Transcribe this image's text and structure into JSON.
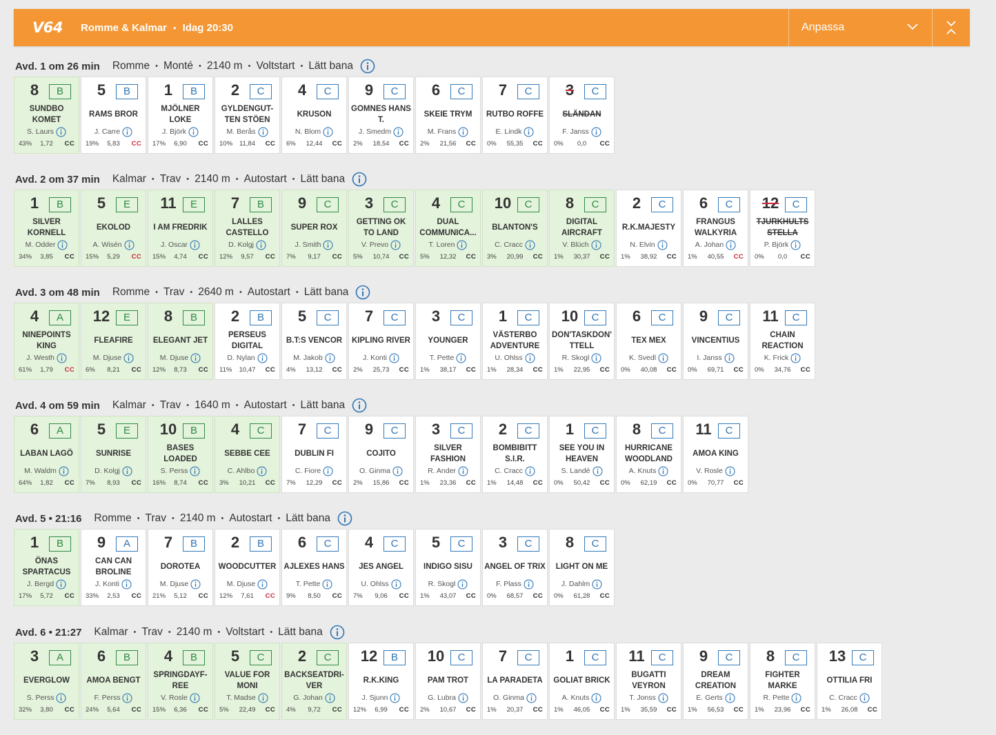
{
  "header": {
    "logo": "V64",
    "track": "Romme & Kalmar",
    "separator": "•",
    "time": "Idag 20:30",
    "customize_label": "Anpassa",
    "bg_color": "#f39633"
  },
  "races": [
    {
      "avd": "Avd. 1 om 26 min",
      "info": [
        "Romme",
        "Monté",
        "2140 m",
        "Voltstart",
        "Lätt bana"
      ],
      "horses": [
        {
          "num": "8",
          "grp": "B",
          "name": "SUNDBO KOMET",
          "driver": "S. Laurs",
          "pct": "43%",
          "odds": "1,72",
          "cc": "CC",
          "sel": true
        },
        {
          "num": "5",
          "grp": "B",
          "name": "RAMS BROR",
          "driver": "J. Carre",
          "pct": "19%",
          "odds": "5,83",
          "cc": "CC",
          "ccRed": true
        },
        {
          "num": "1",
          "grp": "B",
          "name": "MJÖLNER LOKE",
          "driver": "J. Björk",
          "pct": "17%",
          "odds": "6,90",
          "cc": "CC"
        },
        {
          "num": "2",
          "grp": "C",
          "name": "GYLDENGUT-TEN STÖEN",
          "driver": "M. Berås",
          "pct": "10%",
          "odds": "11,84",
          "cc": "CC"
        },
        {
          "num": "4",
          "grp": "C",
          "name": "KRUSON",
          "driver": "N. Blom",
          "pct": "6%",
          "odds": "12,44",
          "cc": "CC"
        },
        {
          "num": "9",
          "grp": "C",
          "name": "GOMNES HANS T.",
          "driver": "J. Smedm",
          "pct": "2%",
          "odds": "18,54",
          "cc": "CC"
        },
        {
          "num": "6",
          "grp": "C",
          "name": "SKEIE TRYM",
          "driver": "M. Frans",
          "pct": "2%",
          "odds": "21,56",
          "cc": "CC"
        },
        {
          "num": "7",
          "grp": "C",
          "name": "RUTBO ROFFE",
          "driver": "E. Lindk",
          "pct": "0%",
          "odds": "55,35",
          "cc": "CC"
        },
        {
          "num": "3",
          "grp": "C",
          "name": "SLÄNDAN",
          "driver": "F. Janss",
          "pct": "0%",
          "odds": "0,0",
          "cc": "CC",
          "scratched": true
        }
      ]
    },
    {
      "avd": "Avd. 2 om 37 min",
      "info": [
        "Kalmar",
        "Trav",
        "2140 m",
        "Autostart",
        "Lätt bana"
      ],
      "horses": [
        {
          "num": "1",
          "grp": "B",
          "name": "SILVER KORNELL",
          "driver": "M. Odder",
          "pct": "34%",
          "odds": "3,85",
          "cc": "CC",
          "sel": true
        },
        {
          "num": "5",
          "grp": "E",
          "name": "EKOLOD",
          "driver": "A. Wisén",
          "pct": "15%",
          "odds": "5,29",
          "cc": "CC",
          "sel": true,
          "ccRed": true
        },
        {
          "num": "11",
          "grp": "E",
          "name": "I AM FREDRIK",
          "driver": "J. Oscar",
          "pct": "15%",
          "odds": "4,74",
          "cc": "CC",
          "sel": true
        },
        {
          "num": "7",
          "grp": "B",
          "name": "LALLES CASTELLO",
          "driver": "D. Kolgj",
          "pct": "12%",
          "odds": "9,57",
          "cc": "CC",
          "sel": true
        },
        {
          "num": "9",
          "grp": "C",
          "name": "SUPER ROX",
          "driver": "J. Smith",
          "pct": "7%",
          "odds": "9,17",
          "cc": "CC",
          "sel": true
        },
        {
          "num": "3",
          "grp": "C",
          "name": "GETTING OK TO LAND",
          "driver": "V. Prevo",
          "pct": "5%",
          "odds": "10,74",
          "cc": "CC",
          "sel": true
        },
        {
          "num": "4",
          "grp": "C",
          "name": "DUAL COMMUNICA...",
          "driver": "T. Loren",
          "pct": "5%",
          "odds": "12,32",
          "cc": "CC",
          "sel": true
        },
        {
          "num": "10",
          "grp": "C",
          "name": "BLANTON'S",
          "driver": "C. Cracc",
          "pct": "3%",
          "odds": "20,99",
          "cc": "CC",
          "sel": true
        },
        {
          "num": "8",
          "grp": "C",
          "name": "DIGITAL AIRCRAFT",
          "driver": "V. Blüch",
          "pct": "1%",
          "odds": "30,37",
          "cc": "CC",
          "sel": true
        },
        {
          "num": "2",
          "grp": "C",
          "name": "R.K.MAJESTY",
          "driver": "N. Elvin",
          "pct": "1%",
          "odds": "38,92",
          "cc": "CC"
        },
        {
          "num": "6",
          "grp": "C",
          "name": "FRANGUS WALKYRIA",
          "driver": "A. Johan",
          "pct": "1%",
          "odds": "40,55",
          "cc": "CC",
          "ccRed": true
        },
        {
          "num": "12",
          "grp": "C",
          "name": "TJURKHULTS STELLA",
          "driver": "P. Björk",
          "pct": "0%",
          "odds": "0,0",
          "cc": "CC",
          "scratched": true
        }
      ]
    },
    {
      "avd": "Avd. 3 om 48 min",
      "info": [
        "Romme",
        "Trav",
        "2640 m",
        "Autostart",
        "Lätt bana"
      ],
      "horses": [
        {
          "num": "4",
          "grp": "A",
          "name": "NINEPOINTS KING",
          "driver": "J. Westh",
          "pct": "61%",
          "odds": "1,79",
          "cc": "CC",
          "sel": true,
          "ccRed": true
        },
        {
          "num": "12",
          "grp": "E",
          "name": "FLEAFIRE",
          "driver": "M. Djuse",
          "pct": "6%",
          "odds": "8,21",
          "cc": "CC",
          "sel": true
        },
        {
          "num": "8",
          "grp": "B",
          "name": "ELEGANT JET",
          "driver": "M. Djuse",
          "pct": "12%",
          "odds": "8,73",
          "cc": "CC",
          "sel": true
        },
        {
          "num": "2",
          "grp": "B",
          "name": "PERSEUS DIGITAL",
          "driver": "D. Nylan",
          "pct": "11%",
          "odds": "10,47",
          "cc": "CC"
        },
        {
          "num": "5",
          "grp": "C",
          "name": "B.T:S VENCOR",
          "driver": "M. Jakob",
          "pct": "4%",
          "odds": "13,12",
          "cc": "CC"
        },
        {
          "num": "7",
          "grp": "C",
          "name": "KIPLING RIVER",
          "driver": "J. Konti",
          "pct": "2%",
          "odds": "25,73",
          "cc": "CC"
        },
        {
          "num": "3",
          "grp": "C",
          "name": "YOUNGER",
          "driver": "T. Pette",
          "pct": "1%",
          "odds": "38,17",
          "cc": "CC"
        },
        {
          "num": "1",
          "grp": "C",
          "name": "VÄSTERBO ADVENTURE",
          "driver": "U. Ohlss",
          "pct": "1%",
          "odds": "28,34",
          "cc": "CC"
        },
        {
          "num": "10",
          "grp": "C",
          "name": "DON'TASKDON' TTELL",
          "driver": "R. Skogl",
          "pct": "1%",
          "odds": "22,95",
          "cc": "CC"
        },
        {
          "num": "6",
          "grp": "C",
          "name": "TEX MEX",
          "driver": "K. Svedl",
          "pct": "0%",
          "odds": "40,08",
          "cc": "CC"
        },
        {
          "num": "9",
          "grp": "C",
          "name": "VINCENTIUS",
          "driver": "I. Janss",
          "pct": "0%",
          "odds": "69,71",
          "cc": "CC"
        },
        {
          "num": "11",
          "grp": "C",
          "name": "CHAIN REACTION",
          "driver": "K. Frick",
          "pct": "0%",
          "odds": "34,76",
          "cc": "CC"
        }
      ]
    },
    {
      "avd": "Avd. 4 om 59 min",
      "info": [
        "Kalmar",
        "Trav",
        "1640 m",
        "Autostart",
        "Lätt bana"
      ],
      "horses": [
        {
          "num": "6",
          "grp": "A",
          "name": "LABAN LAGÖ",
          "driver": "M. Waldm",
          "pct": "64%",
          "odds": "1,82",
          "cc": "CC",
          "sel": true
        },
        {
          "num": "5",
          "grp": "E",
          "name": "SUNRISE",
          "driver": "D. Kolgj",
          "pct": "7%",
          "odds": "8,93",
          "cc": "CC",
          "sel": true
        },
        {
          "num": "10",
          "grp": "B",
          "name": "BASES LOADED",
          "driver": "S. Perss",
          "pct": "16%",
          "odds": "8,74",
          "cc": "CC",
          "sel": true
        },
        {
          "num": "4",
          "grp": "C",
          "name": "SEBBE CEE",
          "driver": "C. Ahlbo",
          "pct": "3%",
          "odds": "10,21",
          "cc": "CC",
          "sel": true
        },
        {
          "num": "7",
          "grp": "C",
          "name": "DUBLIN FI",
          "driver": "C. Fiore",
          "pct": "7%",
          "odds": "12,29",
          "cc": "CC"
        },
        {
          "num": "9",
          "grp": "C",
          "name": "COJITO",
          "driver": "O. Ginma",
          "pct": "2%",
          "odds": "15,86",
          "cc": "CC"
        },
        {
          "num": "3",
          "grp": "C",
          "name": "SILVER FASHION",
          "driver": "R. Ander",
          "pct": "1%",
          "odds": "23,36",
          "cc": "CC"
        },
        {
          "num": "2",
          "grp": "C",
          "name": "BOMBIBITT S.I.R.",
          "driver": "C. Cracc",
          "pct": "1%",
          "odds": "14,48",
          "cc": "CC"
        },
        {
          "num": "1",
          "grp": "C",
          "name": "SEE YOU IN HEAVEN",
          "driver": "S. Landé",
          "pct": "0%",
          "odds": "50,42",
          "cc": "CC"
        },
        {
          "num": "8",
          "grp": "C",
          "name": "HURRICANE WOODLAND",
          "driver": "A. Knuts",
          "pct": "0%",
          "odds": "62,19",
          "cc": "CC"
        },
        {
          "num": "11",
          "grp": "C",
          "name": "AMOA KING",
          "driver": "V. Rosle",
          "pct": "0%",
          "odds": "70,77",
          "cc": "CC"
        }
      ]
    },
    {
      "avd": "Avd. 5 • 21:16",
      "info": [
        "Romme",
        "Trav",
        "2140 m",
        "Autostart",
        "Lätt bana"
      ],
      "horses": [
        {
          "num": "1",
          "grp": "B",
          "name": "ÖNAS SPARTACUS",
          "driver": "J. Bergd",
          "pct": "17%",
          "odds": "5,72",
          "cc": "CC",
          "sel": true
        },
        {
          "num": "9",
          "grp": "A",
          "name": "CAN CAN BROLINE",
          "driver": "J. Konti",
          "pct": "33%",
          "odds": "2,53",
          "cc": "CC"
        },
        {
          "num": "7",
          "grp": "B",
          "name": "DOROTEA",
          "driver": "M. Djuse",
          "pct": "21%",
          "odds": "5,12",
          "cc": "CC"
        },
        {
          "num": "2",
          "grp": "B",
          "name": "WOODCUTTER",
          "driver": "M. Djuse",
          "pct": "12%",
          "odds": "7,61",
          "cc": "CC",
          "ccRed": true
        },
        {
          "num": "6",
          "grp": "C",
          "name": "AJLEXES HANS",
          "driver": "T. Pette",
          "pct": "9%",
          "odds": "8,50",
          "cc": "CC"
        },
        {
          "num": "4",
          "grp": "C",
          "name": "JES ANGEL",
          "driver": "U. Ohlss",
          "pct": "7%",
          "odds": "9,06",
          "cc": "CC"
        },
        {
          "num": "5",
          "grp": "C",
          "name": "INDIGO SISU",
          "driver": "R. Skogl",
          "pct": "1%",
          "odds": "43,07",
          "cc": "CC"
        },
        {
          "num": "3",
          "grp": "C",
          "name": "ANGEL OF TRIX",
          "driver": "F. Plass",
          "pct": "0%",
          "odds": "68,57",
          "cc": "CC"
        },
        {
          "num": "8",
          "grp": "C",
          "name": "LIGHT ON ME",
          "driver": "J. Dahlm",
          "pct": "0%",
          "odds": "61,28",
          "cc": "CC"
        }
      ]
    },
    {
      "avd": "Avd. 6 • 21:27",
      "info": [
        "Kalmar",
        "Trav",
        "2140 m",
        "Voltstart",
        "Lätt bana"
      ],
      "horses": [
        {
          "num": "3",
          "grp": "A",
          "name": "EVERGLOW",
          "driver": "S. Perss",
          "pct": "32%",
          "odds": "3,80",
          "cc": "CC",
          "sel": true
        },
        {
          "num": "6",
          "grp": "B",
          "name": "AMOA BENGT",
          "driver": "F. Perss",
          "pct": "24%",
          "odds": "5,64",
          "cc": "CC",
          "sel": true
        },
        {
          "num": "4",
          "grp": "B",
          "name": "SPRINGDAYF-REE",
          "driver": "V. Rosle",
          "pct": "15%",
          "odds": "6,36",
          "cc": "CC",
          "sel": true
        },
        {
          "num": "5",
          "grp": "C",
          "name": "VALUE FOR MONI",
          "driver": "T. Madse",
          "pct": "5%",
          "odds": "22,49",
          "cc": "CC",
          "sel": true
        },
        {
          "num": "2",
          "grp": "C",
          "name": "BACKSEATDRI-VER",
          "driver": "G. Johan",
          "pct": "4%",
          "odds": "9,72",
          "cc": "CC",
          "sel": true
        },
        {
          "num": "12",
          "grp": "B",
          "name": "R.K.KING",
          "driver": "J. Sjunn",
          "pct": "12%",
          "odds": "6,99",
          "cc": "CC"
        },
        {
          "num": "10",
          "grp": "C",
          "name": "PAM TROT",
          "driver": "G. Lubra",
          "pct": "2%",
          "odds": "10,67",
          "cc": "CC"
        },
        {
          "num": "7",
          "grp": "C",
          "name": "LA PARADETA",
          "driver": "O. Ginma",
          "pct": "1%",
          "odds": "20,37",
          "cc": "CC"
        },
        {
          "num": "1",
          "grp": "C",
          "name": "GOLIAT BRICK",
          "driver": "A. Knuts",
          "pct": "1%",
          "odds": "46,05",
          "cc": "CC"
        },
        {
          "num": "11",
          "grp": "C",
          "name": "BUGATTI VEYRON",
          "driver": "T. Jonss",
          "pct": "1%",
          "odds": "35,59",
          "cc": "CC"
        },
        {
          "num": "9",
          "grp": "C",
          "name": "DREAM CREATION",
          "driver": "E. Gerts",
          "pct": "1%",
          "odds": "56,53",
          "cc": "CC"
        },
        {
          "num": "8",
          "grp": "C",
          "name": "FIGHTER MARKE",
          "driver": "R. Pette",
          "pct": "1%",
          "odds": "23,96",
          "cc": "CC"
        },
        {
          "num": "13",
          "grp": "C",
          "name": "OTTILIA FRI",
          "driver": "C. Cracc",
          "pct": "1%",
          "odds": "26,08",
          "cc": "CC"
        }
      ]
    }
  ]
}
